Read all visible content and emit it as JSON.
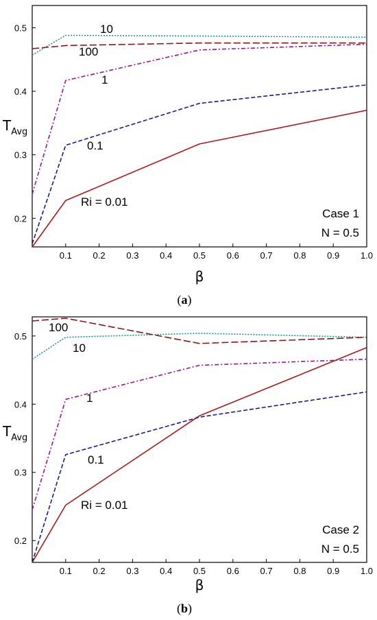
{
  "chart_data": [
    {
      "type": "line",
      "caption": "(a)",
      "caption_letter": "a",
      "xlabel": "β",
      "ylabel_main": "T",
      "ylabel_sub": "Avg",
      "xlim": [
        0.0,
        1.0
      ],
      "ylim": [
        0.155,
        0.535
      ],
      "xticks": [
        0.1,
        0.2,
        0.3,
        0.4,
        0.5,
        0.6,
        0.7,
        0.8,
        0.9,
        1.0
      ],
      "xtick_labels": [
        "0.1",
        "0.2",
        "0.3",
        "0.4",
        "0.5",
        "0.6",
        "0.7",
        "0.8",
        "0.9",
        "1.0"
      ],
      "yticks": [
        0.2,
        0.3,
        0.4,
        0.5
      ],
      "ytick_labels": [
        "0.2",
        "0.3",
        "0.4",
        "0.5"
      ],
      "grid": false,
      "annotation_lines": [
        "Case 1",
        "N = 0.5"
      ],
      "series": [
        {
          "label": "Ri = 0.01",
          "color": "#b01818",
          "dash": "solid",
          "x": [
            0.0,
            0.1,
            0.5,
            1.0
          ],
          "y": [
            0.155,
            0.228,
            0.317,
            0.37
          ]
        },
        {
          "label": "0.1",
          "color": "#1a1a8c",
          "dash": "dash",
          "x": [
            0.0,
            0.1,
            0.5,
            1.0
          ],
          "y": [
            0.16,
            0.315,
            0.381,
            0.41
          ]
        },
        {
          "label": "1",
          "color": "#a0108c",
          "dash": "dashdot",
          "x": [
            0.0,
            0.1,
            0.5,
            1.0
          ],
          "y": [
            0.238,
            0.417,
            0.465,
            0.474
          ]
        },
        {
          "label": "10",
          "color": "#10988c",
          "dash": "dot",
          "x": [
            0.0,
            0.1,
            0.5,
            1.0
          ],
          "y": [
            0.457,
            0.488,
            0.487,
            0.485
          ]
        },
        {
          "label": "100",
          "color": "#8c1414",
          "dash": "longdash",
          "x": [
            0.0,
            0.1,
            0.5,
            1.0
          ],
          "y": [
            0.467,
            0.472,
            0.476,
            0.476
          ]
        }
      ]
    },
    {
      "type": "line",
      "caption": "(b)",
      "caption_letter": "b",
      "xlabel": "β",
      "ylabel_main": "T",
      "ylabel_sub": "Avg",
      "xlim": [
        0.0,
        1.0
      ],
      "ylim": [
        0.168,
        0.528
      ],
      "xticks": [
        0.1,
        0.2,
        0.3,
        0.4,
        0.5,
        0.6,
        0.7,
        0.8,
        0.9,
        1.0
      ],
      "xtick_labels": [
        "0.1",
        "0.2",
        "0.3",
        "0.4",
        "0.5",
        "0.6",
        "0.7",
        "0.8",
        "0.9",
        "1.0"
      ],
      "yticks": [
        0.2,
        0.3,
        0.4,
        0.5
      ],
      "ytick_labels": [
        "0.2",
        "0.3",
        "0.4",
        "0.5"
      ],
      "grid": false,
      "annotation_lines": [
        "Case 2",
        "N = 0.5"
      ],
      "series": [
        {
          "label": "Ri = 0.01",
          "color": "#b01818",
          "dash": "solid",
          "x": [
            0.0,
            0.1,
            0.5,
            1.0
          ],
          "y": [
            0.168,
            0.252,
            0.383,
            0.483
          ]
        },
        {
          "label": "0.1",
          "color": "#1a1a8c",
          "dash": "dash",
          "x": [
            0.0,
            0.1,
            0.5,
            1.0
          ],
          "y": [
            0.168,
            0.326,
            0.381,
            0.418
          ]
        },
        {
          "label": "1",
          "color": "#a0108c",
          "dash": "dashdot",
          "x": [
            0.0,
            0.1,
            0.5,
            1.0
          ],
          "y": [
            0.245,
            0.407,
            0.457,
            0.466
          ]
        },
        {
          "label": "10",
          "color": "#10988c",
          "dash": "dot",
          "x": [
            0.0,
            0.1,
            0.5,
            1.0
          ],
          "y": [
            0.466,
            0.498,
            0.504,
            0.498
          ]
        },
        {
          "label": "100",
          "color": "#8c1414",
          "dash": "longdash",
          "x": [
            0.0,
            0.1,
            0.5,
            1.0
          ],
          "y": [
            0.522,
            0.526,
            0.489,
            0.498
          ]
        }
      ]
    }
  ]
}
